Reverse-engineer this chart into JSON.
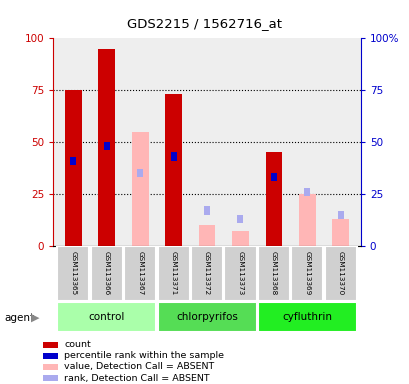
{
  "title": "GDS2215 / 1562716_at",
  "samples": [
    "GSM113365",
    "GSM113366",
    "GSM113367",
    "GSM113371",
    "GSM113372",
    "GSM113373",
    "GSM113368",
    "GSM113369",
    "GSM113370"
  ],
  "groups": [
    {
      "label": "control",
      "color": "#AAFFAA",
      "start": 0,
      "end": 2
    },
    {
      "label": "chlorpyrifos",
      "color": "#55DD55",
      "start": 3,
      "end": 5
    },
    {
      "label": "cyfluthrin",
      "color": "#22EE22",
      "start": 6,
      "end": 8
    }
  ],
  "red_bars": [
    75,
    95,
    0,
    73,
    0,
    0,
    45,
    0,
    0
  ],
  "blue_squares": [
    41,
    48,
    0,
    43,
    0,
    0,
    33,
    0,
    0
  ],
  "pink_bars": [
    0,
    0,
    55,
    0,
    10,
    7,
    0,
    25,
    13
  ],
  "light_blue_sq": [
    0,
    0,
    35,
    0,
    17,
    13,
    0,
    26,
    15
  ],
  "ylim": [
    0,
    100
  ],
  "yticks": [
    0,
    25,
    50,
    75,
    100
  ],
  "red_color": "#CC0000",
  "blue_color": "#0000CC",
  "pink_color": "#FFB6B6",
  "light_blue_color": "#AAAAEE",
  "gray_color": "#D0D0D0",
  "white": "#FFFFFF",
  "bg_color": "#FFFFFF",
  "plot_bg": "#EEEEEE",
  "legend_labels": [
    "count",
    "percentile rank within the sample",
    "value, Detection Call = ABSENT",
    "rank, Detection Call = ABSENT"
  ],
  "agent_label": "agent"
}
